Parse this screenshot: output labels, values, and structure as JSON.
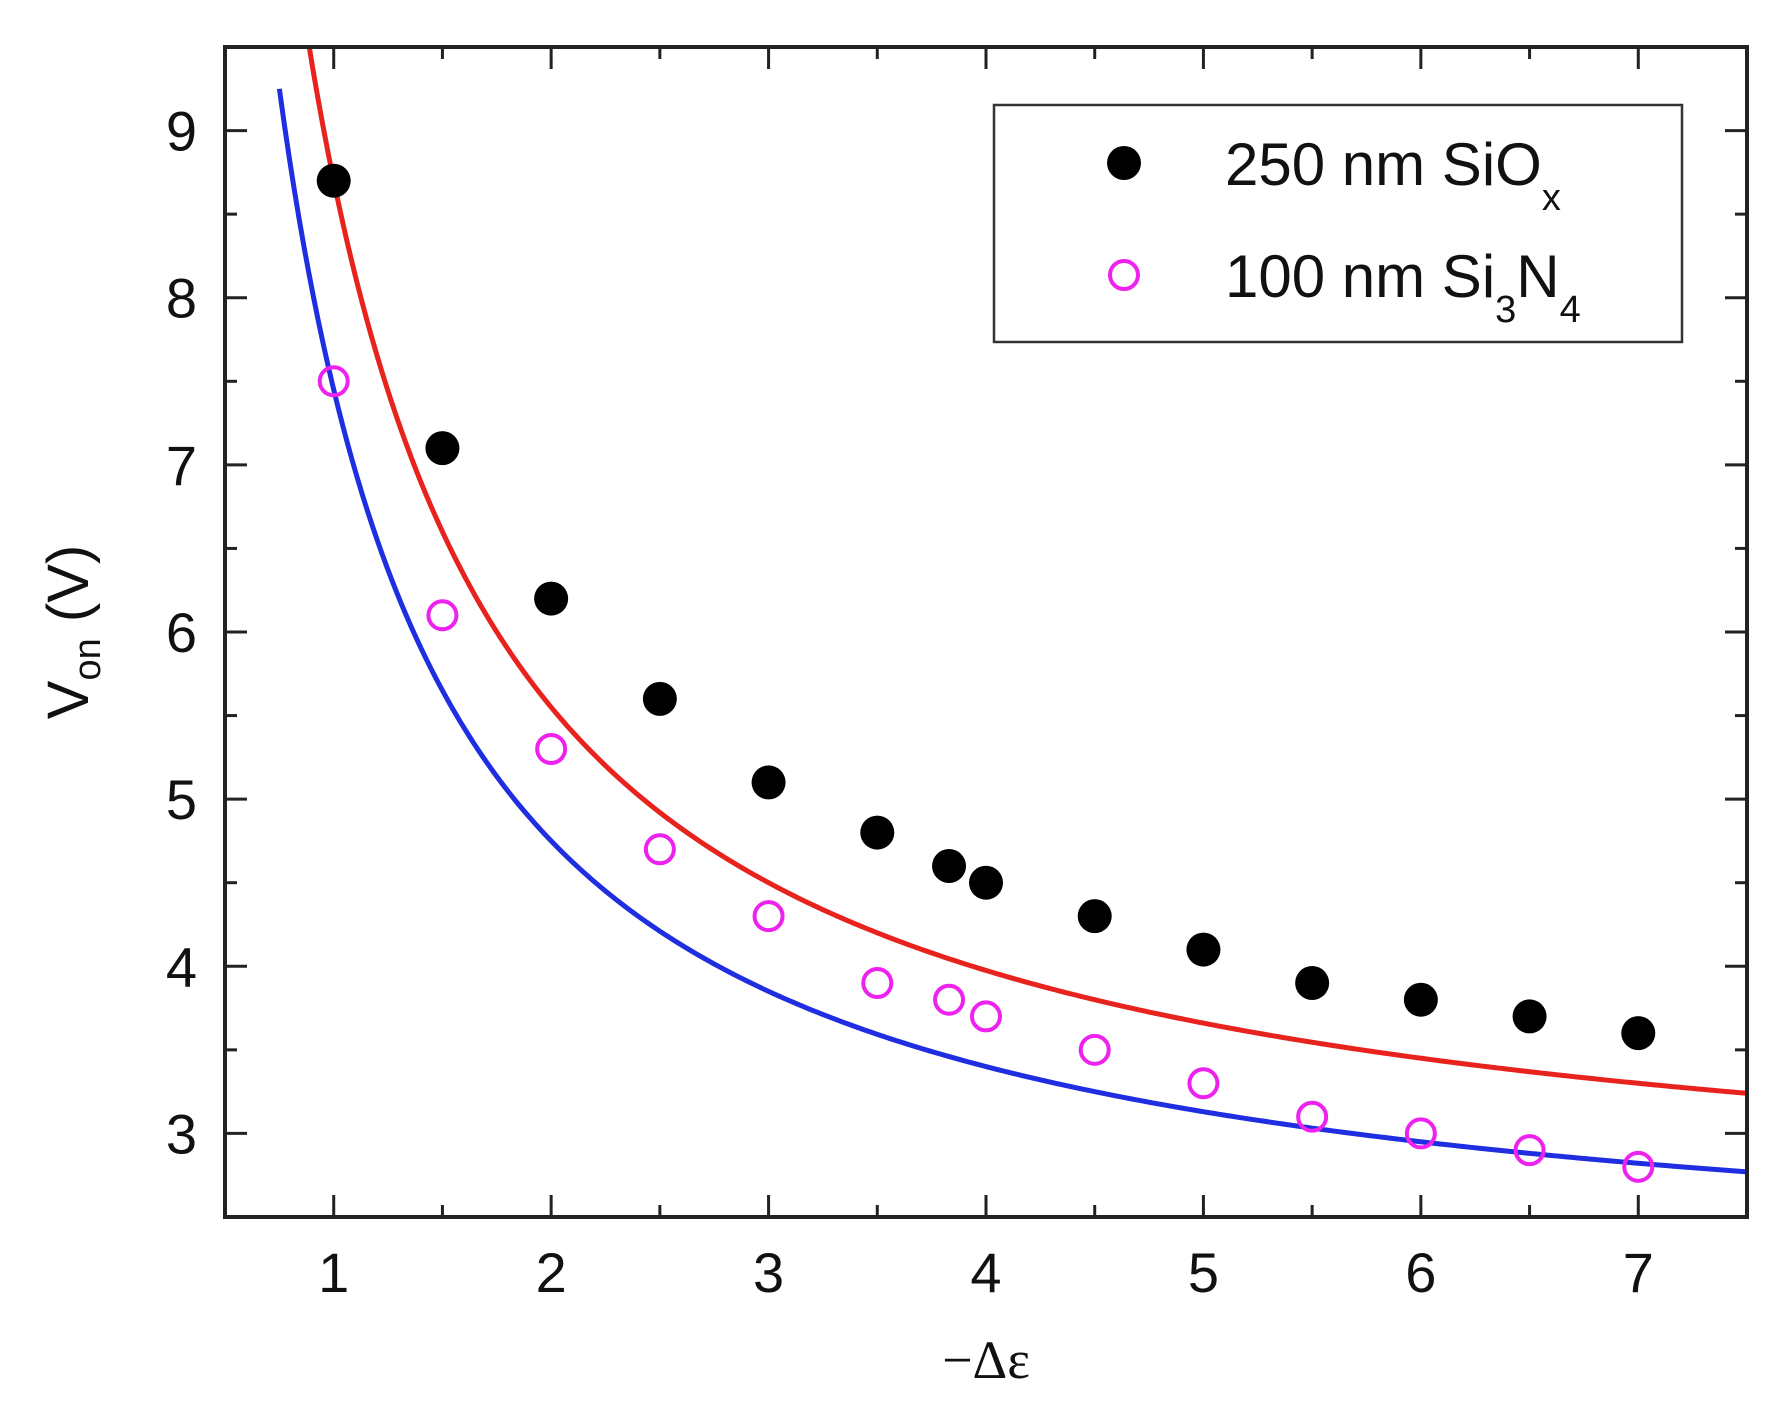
{
  "chart_data": {
    "type": "scatter",
    "title": "",
    "xlabel": "−Δε",
    "ylabel_main": "V",
    "ylabel_sub": "on",
    "ylabel_unit": "(V)",
    "xlim": [
      0.5,
      7.5
    ],
    "ylim": [
      2.5,
      9.5
    ],
    "xticks": [
      1,
      2,
      3,
      4,
      5,
      6,
      7
    ],
    "yticks": [
      3,
      4,
      5,
      6,
      7,
      8,
      9
    ],
    "xticks_minor": [
      1.5,
      2.5,
      3.5,
      4.5,
      5.5,
      6.5
    ],
    "yticks_minor": [
      3.5,
      4.5,
      5.5,
      6.5,
      7.5,
      8.5
    ],
    "legend_position": "top-right",
    "series": [
      {
        "name": "250 nm SiOx",
        "legend_main": "250 nm SiO",
        "legend_sub": "x",
        "marker": "filled-circle",
        "color": "#000000",
        "fit_color": "#e8231e",
        "fit_coeff": 6.3,
        "fit_offset": 2.4,
        "x": [
          1,
          1.5,
          2,
          2.5,
          3,
          3.5,
          3.83,
          4,
          4.5,
          5,
          5.5,
          6,
          6.5,
          7
        ],
        "y": [
          8.7,
          7.1,
          6.2,
          5.6,
          5.1,
          4.8,
          4.6,
          4.5,
          4.3,
          4.1,
          3.9,
          3.8,
          3.7,
          3.6
        ]
      },
      {
        "name": "100 nm Si3N4",
        "legend_main": "100 nm Si",
        "legend_sub1": "3",
        "legend_mid": "N",
        "legend_sub2": "4",
        "marker": "open-circle",
        "color": "#ee22ee",
        "fit_color": "#1f2ee0",
        "fit_coeff": 5.4,
        "fit_offset": 2.05,
        "x": [
          1,
          1.5,
          2,
          2.5,
          3,
          3.5,
          3.83,
          4,
          4.5,
          5,
          5.5,
          6,
          6.5,
          7
        ],
        "y": [
          7.5,
          6.1,
          5.3,
          4.7,
          4.3,
          3.9,
          3.8,
          3.7,
          3.5,
          3.3,
          3.1,
          3.0,
          2.9,
          2.8
        ]
      }
    ]
  }
}
